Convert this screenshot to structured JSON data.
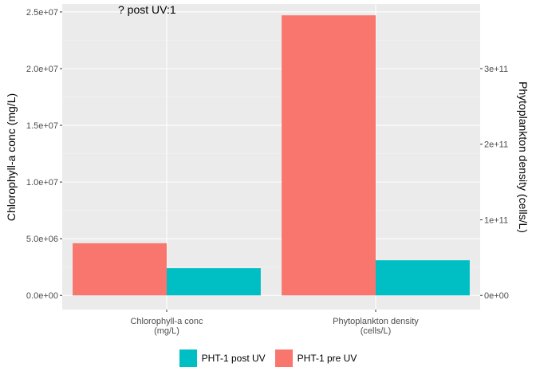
{
  "chart_data": {
    "type": "bar",
    "annotation": "? post UV:1",
    "categories": [
      "Chlorophyll-a conc\n(mg/L)",
      "Phytoplankton density\n(cells/L)"
    ],
    "series": [
      {
        "name": "PHT-1 pre UV",
        "color": "#F8766D",
        "values": [
          4600000,
          24700000
        ]
      },
      {
        "name": "PHT-1 post UV",
        "color": "#00BFC4",
        "values": [
          2400000,
          3100000
        ]
      }
    ],
    "ylabel": "Chlorophyll-a conc (mg/L)",
    "ylim": [
      -1250000,
      25700000
    ],
    "yticks": [
      0,
      5000000,
      10000000,
      15000000,
      20000000,
      25000000
    ],
    "ytick_labels": [
      "0.0e+00",
      "5.0e+06",
      "1.0e+07",
      "1.5e+07",
      "2.0e+07",
      "2.5e+07"
    ],
    "y2label": "Phytoplankton density (cells/L)",
    "y2ticks": [
      0,
      100000000000,
      200000000000,
      300000000000
    ],
    "y2tick_labels": [
      "0e+00",
      "1e+11",
      "2e+11",
      "3e+11"
    ],
    "y2_per_y1": 15000,
    "grid": true,
    "legend_position": "bottom"
  },
  "legend": [
    {
      "label": "PHT-1 post UV",
      "color": "#00BFC4"
    },
    {
      "label": "PHT-1 pre UV",
      "color": "#F8766D"
    }
  ]
}
